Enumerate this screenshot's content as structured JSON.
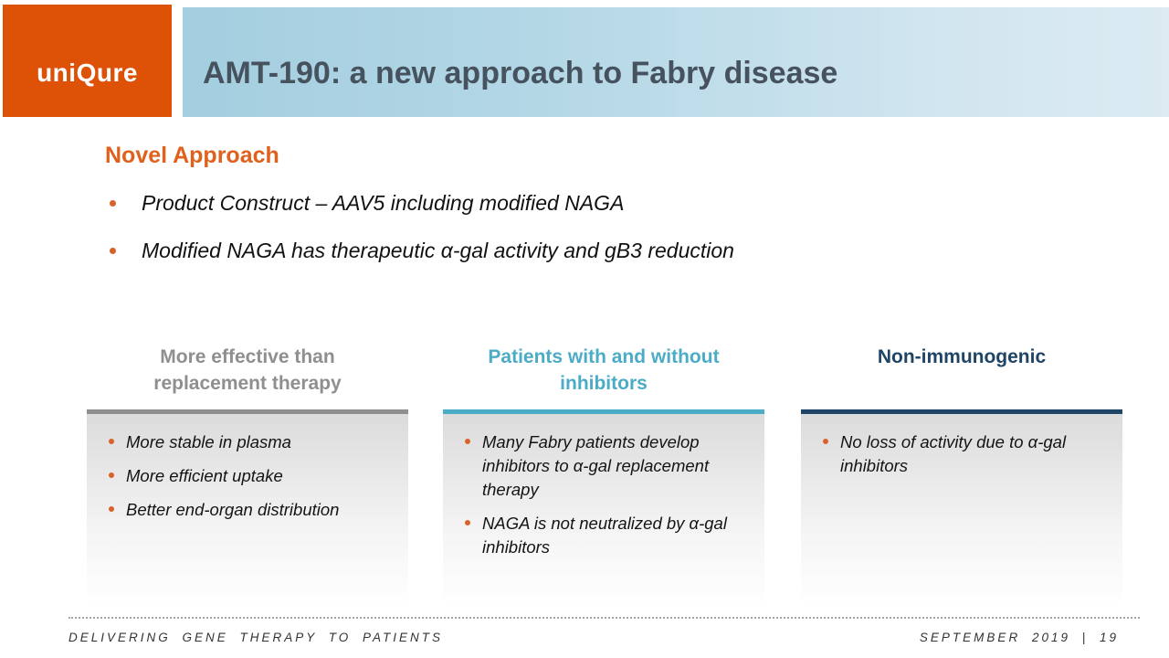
{
  "slide": {
    "logo": "uniQure",
    "title": "AMT-190: a new approach to Fabry disease",
    "section": {
      "heading": "Novel Approach"
    },
    "intro_bullets": [
      "Product Construct – AAV5 including modified NAGA",
      "Modified NAGA has therapeutic α-gal activity and gB3 reduction"
    ],
    "columns": [
      {
        "header_line1": "More effective than",
        "header_line2": "replacement therapy",
        "accent": "#8F8F8F",
        "bullets": [
          "More stable in plasma",
          "More efficient uptake",
          "Better end-organ distribution"
        ]
      },
      {
        "header_line1": "Patients with and without",
        "header_line2": "inhibitors",
        "accent": "#4BACC6",
        "bullets": [
          "Many Fabry patients develop inhibitors to α-gal replacement therapy",
          "NAGA is not neutralized by α-gal inhibitors"
        ]
      },
      {
        "header_line1": "Non-immunogenic",
        "header_line2": "",
        "accent": "#1F4566",
        "bullets": [
          "No loss of activity due to α-gal inhibitors"
        ]
      }
    ],
    "footer": {
      "left": "DELIVERING GENE THERAPY TO PATIENTS",
      "right": "SEPTEMBER 2019 | 19"
    },
    "colors": {
      "brand_orange": "#DD5207",
      "heading_orange": "#E0611B",
      "title_text": "#46535F",
      "band_blue_start": "#A3CEDF",
      "band_blue_end": "#DCEBF2",
      "bullet_dot": "#D9622B",
      "col1_accent": "#8F8F8F",
      "col2_accent": "#4BACC6",
      "col3_accent": "#1F4566"
    }
  }
}
